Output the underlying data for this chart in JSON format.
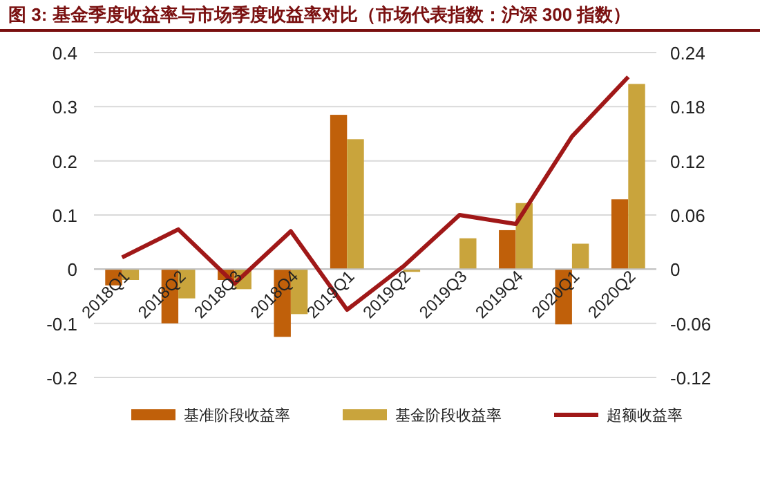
{
  "chart_data": {
    "type": "bar",
    "title": "图 3: 基金季度收益率与市场季度收益率对比（市场代表指数：沪深 300 指数）",
    "categories": [
      "2018Q1",
      "2018Q2",
      "2018Q3",
      "2018Q4",
      "2019Q1",
      "2019Q2",
      "2019Q3",
      "2019Q4",
      "2020Q1",
      "2020Q2"
    ],
    "series": [
      {
        "name": "基准阶段收益率",
        "color": "#c0600a",
        "values": [
          -0.03,
          -0.1,
          -0.02,
          -0.125,
          0.285,
          0,
          0,
          0.072,
          -0.102,
          0.129
        ]
      },
      {
        "name": "基金阶段收益率",
        "color": "#c9a43c",
        "values": [
          -0.02,
          -0.054,
          -0.037,
          -0.083,
          0.24,
          -0.005,
          0.057,
          0.122,
          0.047,
          0.342
        ]
      },
      {
        "name": "超额收益率",
        "type": "line",
        "axis": "y2",
        "color": "#a01818",
        "values": [
          0.013,
          0.044,
          -0.016,
          0.042,
          -0.045,
          0.003,
          0.06,
          0.05,
          0.147,
          0.213
        ]
      }
    ],
    "ylim": [
      -0.2,
      0.4
    ],
    "yticks": [
      -0.2,
      -0.1,
      0,
      0.1,
      0.2,
      0.3,
      0.4
    ],
    "y2lim": [
      -0.12,
      0.24
    ],
    "y2ticks": [
      -0.12,
      -0.06,
      0,
      0.06,
      0.12,
      0.18,
      0.24
    ],
    "grid": "y",
    "legend": "bottom"
  }
}
